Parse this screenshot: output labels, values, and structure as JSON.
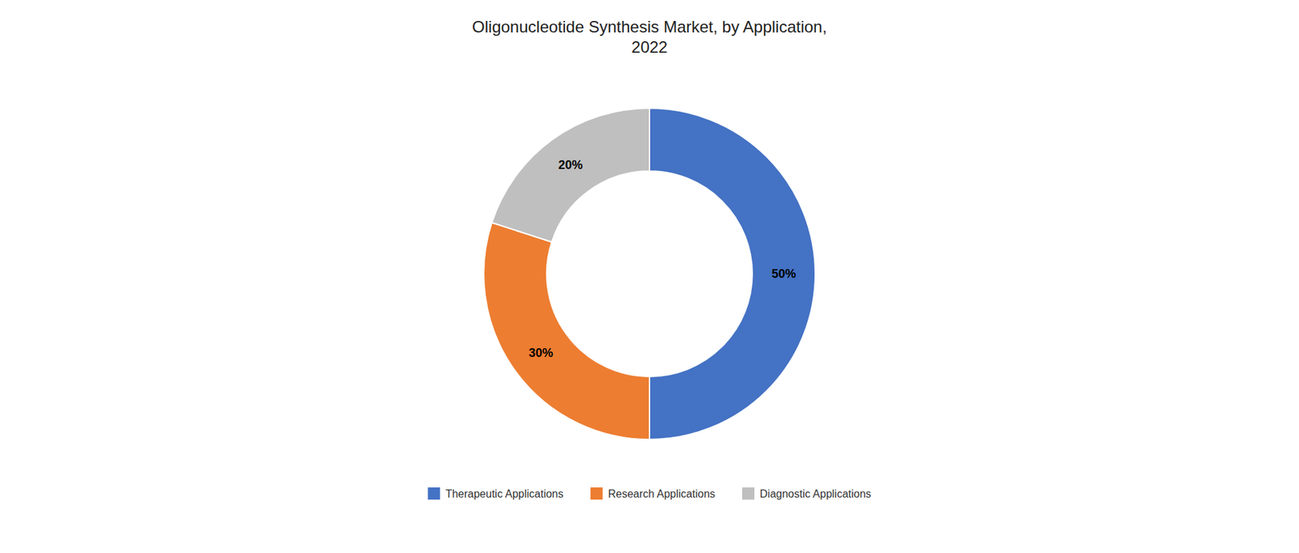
{
  "chart_data": {
    "type": "donut",
    "title": "Oligonucleotide Synthesis Market, by Application,\n2022",
    "categories": [
      "Therapeutic Applications",
      "Research Applications",
      "Diagnostic Applications"
    ],
    "values": [
      50,
      30,
      20
    ],
    "value_labels": [
      "50%",
      "30%",
      "20%"
    ],
    "colors": [
      "#4472C4",
      "#ED7D31",
      "#BFBFBF"
    ],
    "data_labels": true,
    "legend": "bottom"
  }
}
